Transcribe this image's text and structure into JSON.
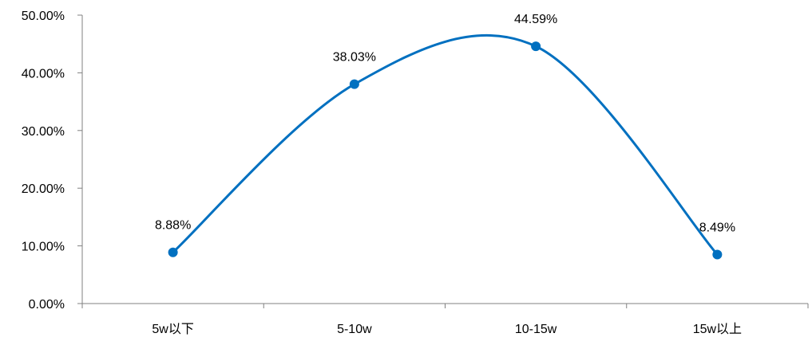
{
  "chart_data": {
    "type": "line",
    "smooth": true,
    "categories": [
      "5w以下",
      "5-10w",
      "10-15w",
      "15w以上"
    ],
    "values": [
      8.88,
      38.03,
      44.59,
      8.49
    ],
    "data_labels": [
      "8.88%",
      "38.03%",
      "44.59%",
      "8.49%"
    ],
    "ylim": [
      0,
      50
    ],
    "y_ticks": [
      0,
      10,
      20,
      30,
      40,
      50
    ],
    "y_tick_labels": [
      "0.00%",
      "10.00%",
      "20.00%",
      "30.00%",
      "40.00%",
      "50.00%"
    ],
    "grid": false,
    "legend": "none",
    "series_color": "#0070C0",
    "title": "",
    "xlabel": "",
    "ylabel": ""
  }
}
